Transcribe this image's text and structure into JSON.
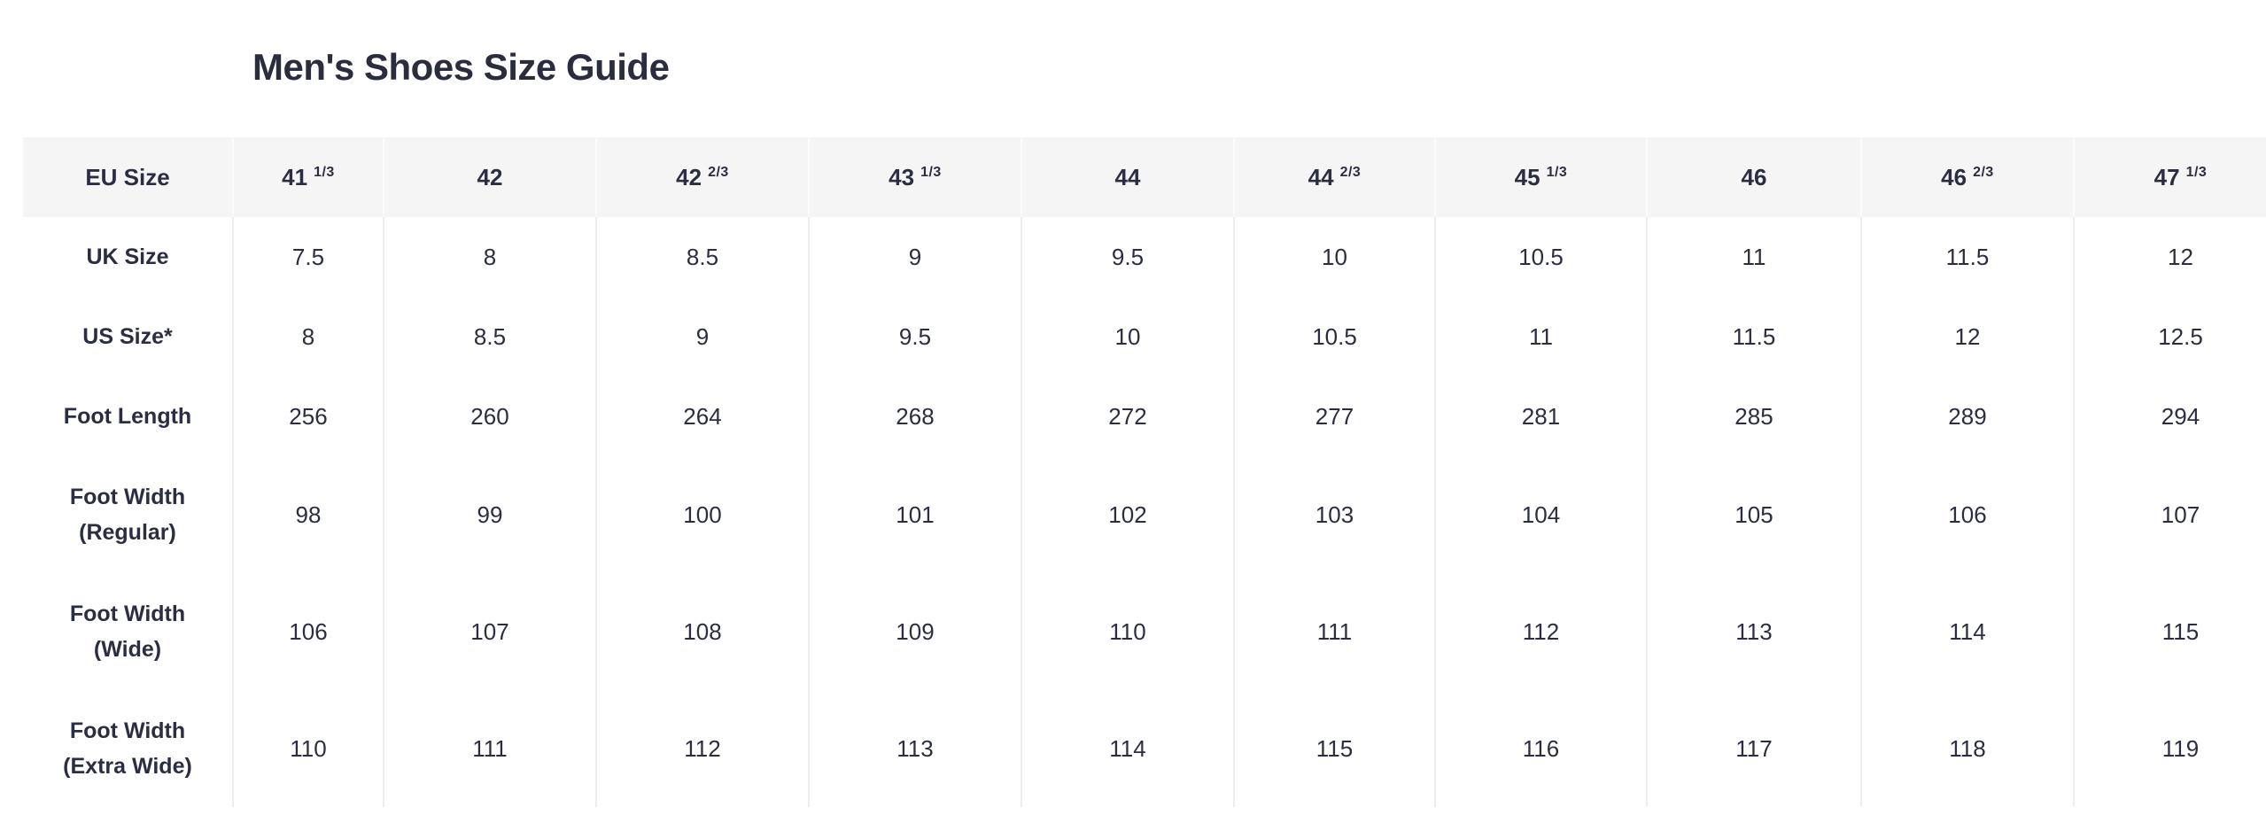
{
  "title": "Men's Shoes Size Guide",
  "colors": {
    "text": "#2b2e42",
    "title_text": "#2a2d3e",
    "header_background": "#f5f5f6",
    "divider": "#ededef",
    "page_background": "#ffffff"
  },
  "table": {
    "header": {
      "label": "EU Size",
      "columns": [
        {
          "main": "41",
          "frac": "1/3"
        },
        {
          "main": "42",
          "frac": ""
        },
        {
          "main": "42",
          "frac": "2/3"
        },
        {
          "main": "43",
          "frac": "1/3"
        },
        {
          "main": "44",
          "frac": ""
        },
        {
          "main": "44",
          "frac": "2/3"
        },
        {
          "main": "45",
          "frac": "1/3"
        },
        {
          "main": "46",
          "frac": ""
        },
        {
          "main": "46",
          "frac": "2/3"
        },
        {
          "main": "47",
          "frac": "1/3"
        }
      ]
    },
    "rows": [
      {
        "label_lines": [
          "UK Size"
        ],
        "values": [
          "7.5",
          "8",
          "8.5",
          "9",
          "9.5",
          "10",
          "10.5",
          "11",
          "11.5",
          "12"
        ]
      },
      {
        "label_lines": [
          "US Size*"
        ],
        "values": [
          "8",
          "8.5",
          "9",
          "9.5",
          "10",
          "10.5",
          "11",
          "11.5",
          "12",
          "12.5"
        ]
      },
      {
        "label_lines": [
          "Foot Length"
        ],
        "values": [
          "256",
          "260",
          "264",
          "268",
          "272",
          "277",
          "281",
          "285",
          "289",
          "294"
        ]
      },
      {
        "label_lines": [
          "Foot Width",
          "(Regular)"
        ],
        "values": [
          "98",
          "99",
          "100",
          "101",
          "102",
          "103",
          "104",
          "105",
          "106",
          "107"
        ]
      },
      {
        "label_lines": [
          "Foot Width",
          "(Wide)"
        ],
        "values": [
          "106",
          "107",
          "108",
          "109",
          "110",
          "111",
          "112",
          "113",
          "114",
          "115"
        ]
      },
      {
        "label_lines": [
          "Foot Width",
          "(Extra Wide)"
        ],
        "values": [
          "110",
          "111",
          "112",
          "113",
          "114",
          "115",
          "116",
          "117",
          "118",
          "119"
        ]
      }
    ]
  }
}
